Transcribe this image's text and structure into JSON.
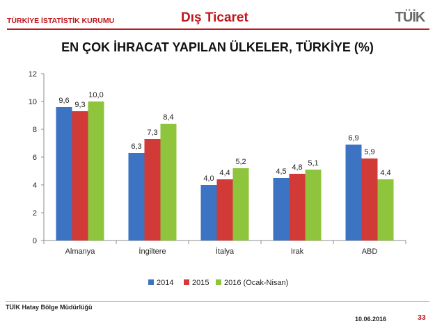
{
  "header": {
    "org": "TÜRKİYE İSTATİSTİK KURUMU",
    "section": "Dış Ticaret",
    "logo_text": "TÜİK"
  },
  "footer": {
    "office": "TÜİK Hatay Bölge Müdürlüğü",
    "date": "10.06.2016",
    "page": "33"
  },
  "colors": {
    "accent": "#c0161c"
  },
  "chart_data": {
    "type": "bar",
    "title": "EN ÇOK İHRACAT YAPILAN ÜLKELER, TÜRKİYE (%)",
    "categories": [
      "Almanya",
      "İngiltere",
      "İtalya",
      "Irak",
      "ABD"
    ],
    "series": [
      {
        "name": "2014",
        "color": "#3c73c2",
        "values": [
          9.6,
          6.3,
          4.0,
          4.5,
          6.9
        ],
        "labels": [
          "9,6",
          "6,3",
          "4,0",
          "4,5",
          "6,9"
        ]
      },
      {
        "name": "2015",
        "color": "#d13a37",
        "values": [
          9.3,
          7.3,
          4.4,
          4.8,
          5.9
        ],
        "labels": [
          "9,3",
          "7,3",
          "4,4",
          "4,8",
          "5,9"
        ]
      },
      {
        "name": "2016 (Ocak-Nisan)",
        "color": "#8fc43d",
        "values": [
          10.0,
          8.4,
          5.2,
          5.1,
          4.4
        ],
        "labels": [
          "10,0",
          "8,4",
          "5,2",
          "5,1",
          "4,4"
        ]
      }
    ],
    "yticks": [
      "0",
      "2",
      "4",
      "6",
      "8",
      "10",
      "12"
    ],
    "ylim": [
      0,
      12
    ],
    "grid": false,
    "legend": "bottom"
  }
}
